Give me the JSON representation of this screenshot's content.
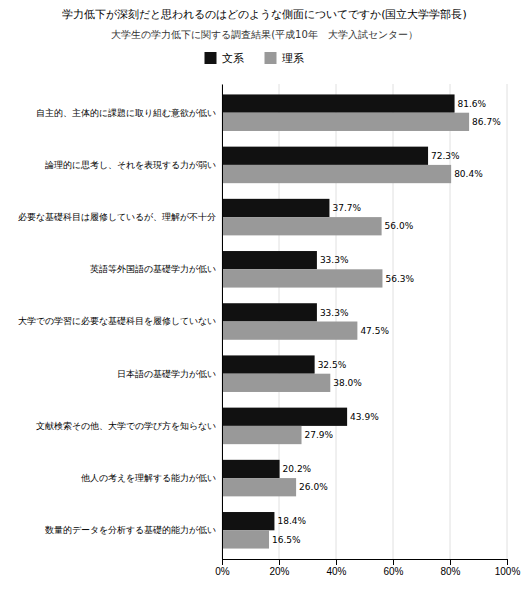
{
  "chart_data": {
    "type": "bar",
    "orientation": "horizontal",
    "title": "学力低下が深刻だと思われるのはどのような側面についてですか(国立大学学部長)",
    "subtitle": "大学生の学力低下に関する調査結果(平成10年　大学入試センター）",
    "categories": [
      "自主的、主体的に課題に取り組む意欲が低い",
      "論理的に思考し、それを表現する力が弱い",
      "必要な基礎科目は履修しているが、理解が不十分",
      "英語等外国語の基礎学力が低い",
      "大学での学習に必要な基礎科目を履修していない",
      "日本語の基礎学力が低い",
      "文献検索その他、大学での学び方を知らない",
      "他人の考えを理解する能力が低い",
      "数量的データを分析する基礎的能力が低い"
    ],
    "series": [
      {
        "name": "文系",
        "color": "#111111",
        "values": [
          81.6,
          72.3,
          37.7,
          33.3,
          33.3,
          32.5,
          43.9,
          20.2,
          18.4
        ],
        "value_labels": [
          "81.6%",
          "72.3%",
          "37.7%",
          "33.3%",
          "33.3%",
          "32.5%",
          "43.9%",
          "20.2%",
          "18.4%"
        ]
      },
      {
        "name": "理系",
        "color": "#999999",
        "values": [
          86.7,
          80.4,
          56.0,
          56.3,
          47.5,
          38.0,
          27.9,
          26.0,
          16.5
        ],
        "value_labels": [
          "86.7%",
          "80.4%",
          "56.0%",
          "56.3%",
          "47.5%",
          "38.0%",
          "27.9%",
          "26.0%",
          "16.5%"
        ]
      }
    ],
    "xlim": [
      0,
      100
    ],
    "xticks": [
      {
        "value": 0,
        "label": "0%"
      },
      {
        "value": 20,
        "label": "20%"
      },
      {
        "value": 40,
        "label": "40%"
      },
      {
        "value": 60,
        "label": "60%"
      },
      {
        "value": 80,
        "label": "80%"
      },
      {
        "value": 100,
        "label": "100%"
      }
    ],
    "grid": true,
    "legend": "top",
    "data_labels": true
  }
}
